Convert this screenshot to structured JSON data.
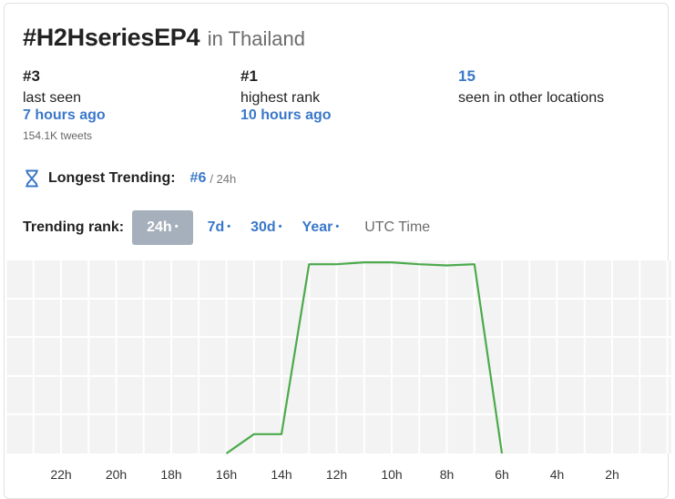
{
  "header": {
    "hashtag": "#H2HseriesEP4",
    "location": "in Thailand"
  },
  "stats": [
    {
      "rank": "#3",
      "label": "last seen",
      "time": "7 hours ago",
      "tweets": "154.1K tweets"
    },
    {
      "rank": "#1",
      "label": "highest rank",
      "time": "10 hours ago"
    },
    {
      "rank": "15",
      "label": "seen in other locations"
    }
  ],
  "longest_trending": {
    "icon": "hourglass-icon",
    "label": "Longest Trending:",
    "rank": "#6",
    "window": "/ 24h"
  },
  "trending_rank": {
    "label": "Trending rank:",
    "periods": [
      {
        "label": "24h",
        "active": true
      },
      {
        "label": "7d",
        "active": false
      },
      {
        "label": "30d",
        "active": false
      },
      {
        "label": "Year",
        "active": false
      }
    ],
    "dot": "•",
    "timezone": "UTC Time"
  },
  "colors": {
    "accent": "#3a78c9",
    "active_tab_bg": "#a6b0bc",
    "line": "#4caa4c",
    "grid_bg": "#f3f3f3"
  },
  "chart_data": {
    "type": "line",
    "x_labels": [
      "22h",
      "20h",
      "18h",
      "16h",
      "14h",
      "12h",
      "10h",
      "8h",
      "6h",
      "4h",
      "2h"
    ],
    "series": [
      {
        "x": [
          "16h",
          "15h",
          "14h",
          "13h",
          "12h",
          "11h",
          "10h",
          "9h",
          "8h",
          "7h",
          "6h"
        ],
        "rank": [
          50,
          45,
          45,
          1,
          1,
          0.5,
          0.5,
          1,
          1.3,
          1,
          50
        ]
      }
    ],
    "y_inverted": true,
    "grid": true
  }
}
